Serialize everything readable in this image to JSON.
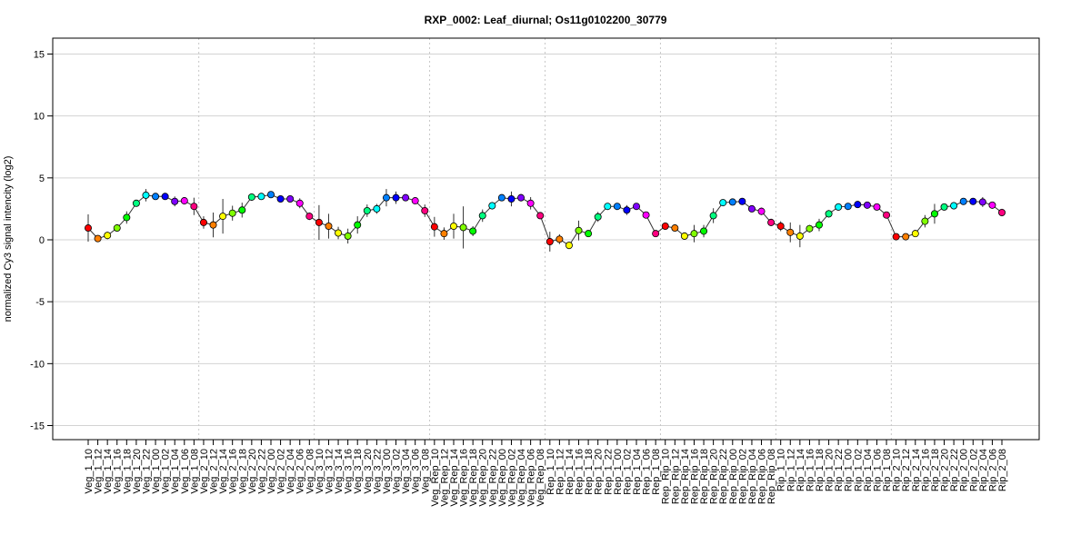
{
  "chart_data": {
    "type": "line",
    "title": "RXP_0002: Leaf_diurnal; Os11g0102200_30779",
    "xlabel": "",
    "ylabel": "normalized Cy3 signal intencity (log2)",
    "ylim": [
      -16,
      16
    ],
    "yticks": [
      -15,
      -10,
      -5,
      0,
      5,
      10,
      15
    ],
    "grid": true,
    "group_size": 12,
    "colors": [
      "#FF0000",
      "#FF8000",
      "#FFFF00",
      "#80FF00",
      "#00FF00",
      "#00FF80",
      "#00FFFF",
      "#0080FF",
      "#0000FF",
      "#8000FF",
      "#FF00FF",
      "#FF0080"
    ],
    "categories": [
      "Veg_1_10",
      "Veg_1_12",
      "Veg_1_14",
      "Veg_1_16",
      "Veg_1_18",
      "Veg_1_20",
      "Veg_1_22",
      "Veg_1_00",
      "Veg_1_02",
      "Veg_1_04",
      "Veg_1_06",
      "Veg_1_08",
      "Veg_2_10",
      "Veg_2_12",
      "Veg_2_14",
      "Veg_2_16",
      "Veg_2_18",
      "Veg_2_20",
      "Veg_2_22",
      "Veg_2_00",
      "Veg_2_02",
      "Veg_2_04",
      "Veg_2_06",
      "Veg_2_08",
      "Veg_3_10",
      "Veg_3_12",
      "Veg_3_14",
      "Veg_3_16",
      "Veg_3_18",
      "Veg_3_20",
      "Veg_3_22",
      "Veg_3_00",
      "Veg_3_02",
      "Veg_3_04",
      "Veg_3_06",
      "Veg_3_08",
      "Veg_Rep_10",
      "Veg_Rep_12",
      "Veg_Rep_14",
      "Veg_Rep_16",
      "Veg_Rep_18",
      "Veg_Rep_20",
      "Veg_Rep_22",
      "Veg_Rep_00",
      "Veg_Rep_02",
      "Veg_Rep_04",
      "Veg_Rep_06",
      "Veg_Rep_08",
      "Rep_1_10",
      "Rep_1_12",
      "Rep_1_14",
      "Rep_1_16",
      "Rep_1_18",
      "Rep_1_20",
      "Rep_1_22",
      "Rep_1_00",
      "Rep_1_02",
      "Rep_1_04",
      "Rep_1_06",
      "Rep_1_08",
      "Rep_Rip_10",
      "Rep_Rip_12",
      "Rep_Rip_14",
      "Rep_Rip_16",
      "Rep_Rip_18",
      "Rep_Rip_20",
      "Rep_Rip_22",
      "Rep_Rip_00",
      "Rep_Rip_02",
      "Rep_Rip_04",
      "Rep_Rip_06",
      "Rep_Rip_08",
      "Rip_1_10",
      "Rip_1_12",
      "Rip_1_14",
      "Rip_1_16",
      "Rip_1_18",
      "Rip_1_20",
      "Rip_1_22",
      "Rip_1_00",
      "Rip_1_02",
      "Rip_1_04",
      "Rip_1_06",
      "Rip_1_08",
      "Rip_2_10",
      "Rip_2_12",
      "Rip_2_14",
      "Rip_2_16",
      "Rip_2_18",
      "Rip_2_20",
      "Rip_2_22",
      "Rip_2_00",
      "Rip_2_02",
      "Rip_2_04",
      "Rip_2_06",
      "Rip_2_08"
    ],
    "values": [
      0.95,
      0.1,
      0.35,
      0.95,
      1.8,
      2.95,
      3.6,
      3.5,
      3.5,
      3.1,
      3.15,
      2.7,
      1.4,
      1.2,
      1.9,
      2.15,
      2.4,
      3.45,
      3.5,
      3.65,
      3.3,
      3.3,
      2.95,
      1.9,
      1.4,
      1.1,
      0.55,
      0.3,
      1.2,
      2.35,
      2.5,
      3.4,
      3.4,
      3.4,
      3.15,
      2.35,
      1.05,
      0.5,
      1.1,
      1.0,
      0.7,
      1.95,
      2.75,
      3.4,
      3.3,
      3.4,
      2.95,
      1.95,
      -0.15,
      0.05,
      -0.45,
      0.75,
      0.5,
      1.85,
      2.7,
      2.7,
      2.4,
      2.7,
      2.0,
      0.5,
      1.1,
      0.95,
      0.3,
      0.5,
      0.7,
      1.95,
      3.0,
      3.05,
      3.1,
      2.5,
      2.3,
      1.4,
      1.1,
      0.6,
      0.3,
      0.9,
      1.2,
      2.1,
      2.65,
      2.7,
      2.85,
      2.8,
      2.65,
      2.0,
      0.25,
      0.25,
      0.5,
      1.5,
      2.1,
      2.65,
      2.75,
      3.1,
      3.1,
      3.05,
      2.8,
      2.2
    ],
    "errors": [
      1.1,
      0.2,
      0.3,
      0.3,
      0.5,
      0.2,
      0.5,
      0.2,
      0.2,
      0.4,
      0.3,
      0.7,
      0.5,
      1.0,
      1.4,
      0.6,
      0.6,
      0.3,
      0.2,
      0.2,
      0.2,
      0.2,
      0.4,
      0.3,
      1.4,
      1.0,
      0.5,
      0.6,
      0.7,
      0.5,
      0.4,
      0.7,
      0.5,
      0.2,
      0.2,
      0.5,
      0.8,
      0.5,
      1.0,
      1.7,
      0.4,
      0.5,
      0.3,
      0.2,
      0.6,
      0.3,
      0.5,
      0.2,
      0.8,
      0.4,
      0.3,
      0.8,
      0.2,
      0.4,
      0.2,
      0.2,
      0.4,
      0.2,
      0.2,
      0.2,
      0.3,
      0.2,
      0.3,
      0.7,
      0.5,
      0.6,
      0.2,
      0.2,
      0.2,
      0.2,
      0.3,
      0.3,
      0.4,
      0.8,
      0.9,
      0.3,
      0.5,
      0.3,
      0.3,
      0.2,
      0.2,
      0.2,
      0.2,
      0.2,
      0.2,
      0.2,
      0.2,
      0.5,
      0.8,
      0.2,
      0.3,
      0.2,
      0.2,
      0.4,
      0.2,
      0.3
    ]
  }
}
